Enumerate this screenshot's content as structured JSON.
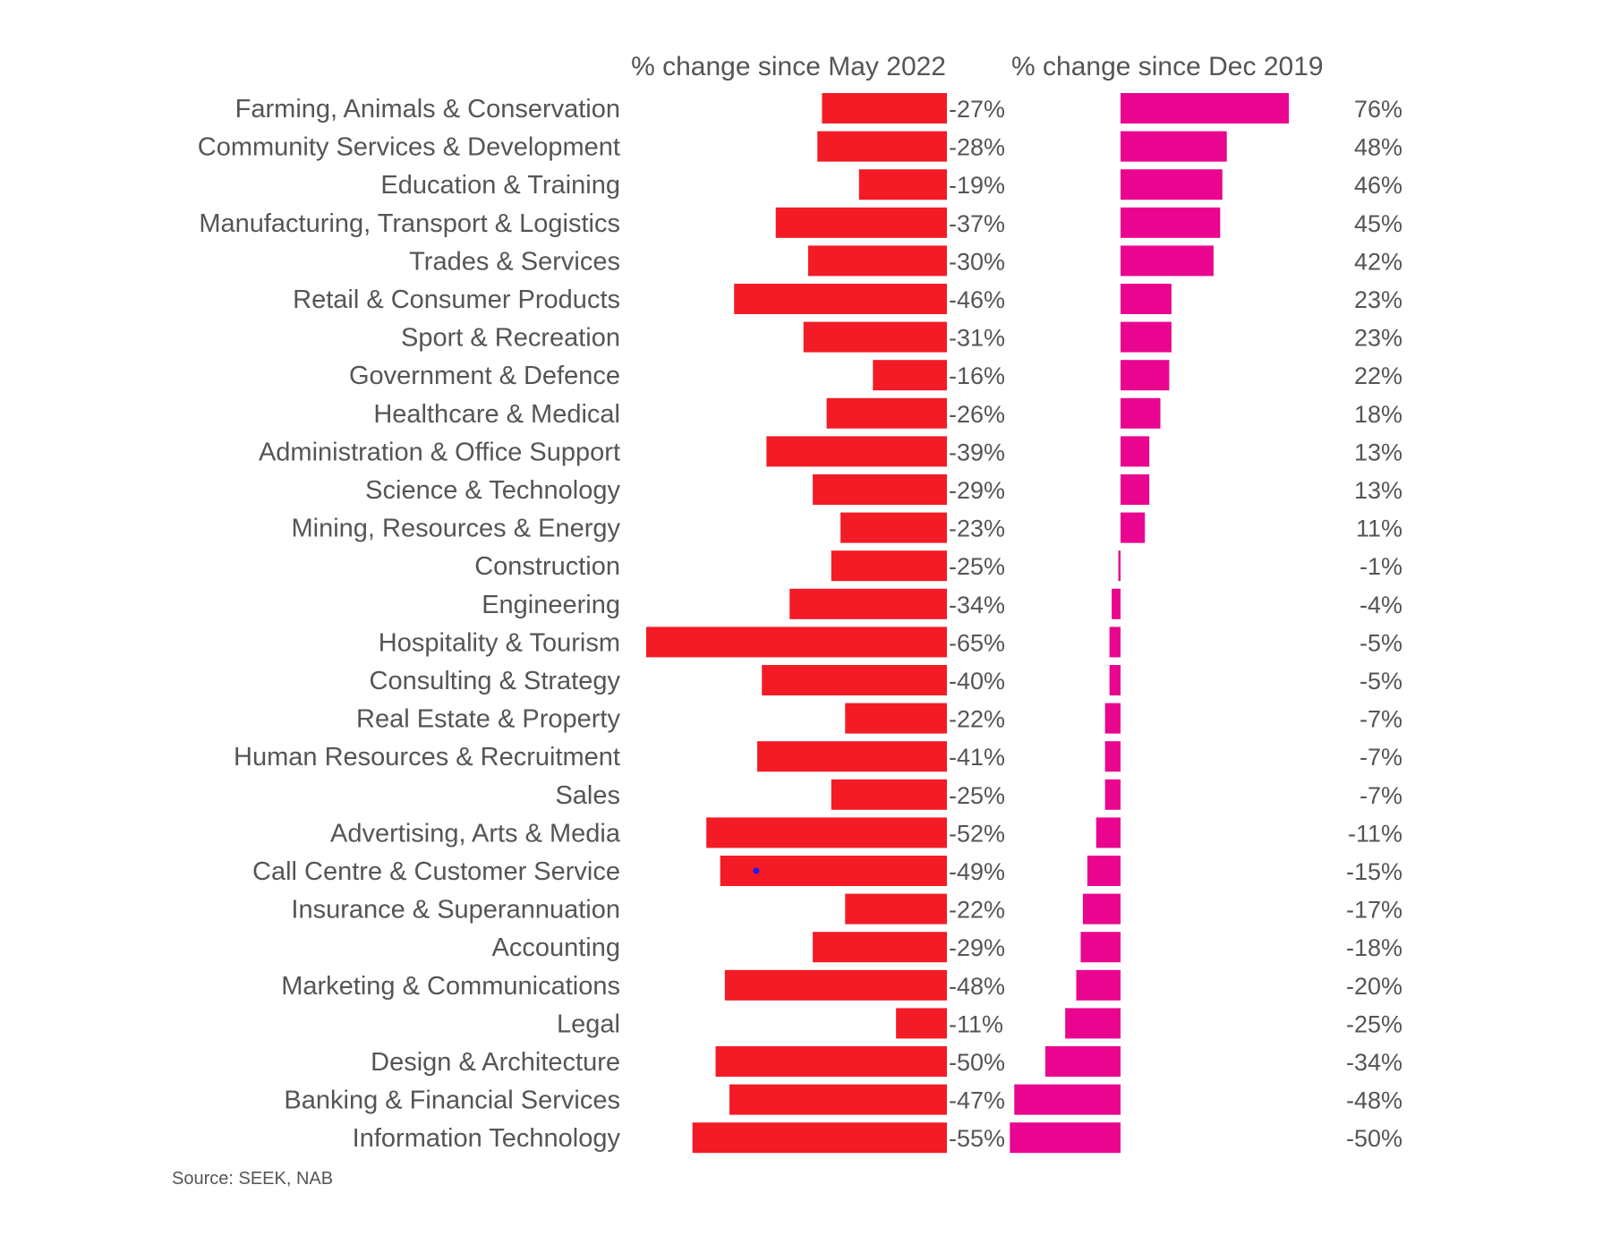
{
  "colors": {
    "may_series": "#f31b25",
    "dec_series": "#e9058f",
    "text": "#555555",
    "marker": "#1a1aff"
  },
  "source": "Source: SEEK, NAB",
  "chart_data": [
    {
      "type": "bar",
      "orientation": "horizontal",
      "title": "% change since May 2022",
      "categories": [
        "Farming, Animals & Conservation",
        "Community Services & Development",
        "Education & Training",
        "Manufacturing, Transport & Logistics",
        "Trades & Services",
        "Retail & Consumer Products",
        "Sport & Recreation",
        "Government & Defence",
        "Healthcare & Medical",
        "Administration & Office Support",
        "Science & Technology",
        "Mining, Resources & Energy",
        "Construction",
        "Engineering",
        "Hospitality & Tourism",
        "Consulting & Strategy",
        "Real Estate & Property",
        "Human Resources & Recruitment",
        "Sales",
        "Advertising, Arts & Media",
        "Call Centre & Customer Service",
        "Insurance & Superannuation",
        "Accounting",
        "Marketing & Communications",
        "Legal",
        "Design & Architecture",
        "Banking & Financial Services",
        "Information Technology"
      ],
      "values": [
        -27,
        -28,
        -19,
        -37,
        -30,
        -46,
        -31,
        -16,
        -26,
        -39,
        -29,
        -23,
        -25,
        -34,
        -65,
        -40,
        -22,
        -41,
        -25,
        -52,
        -49,
        -22,
        -29,
        -48,
        -11,
        -50,
        -47,
        -55
      ],
      "labels": [
        "-27%",
        "-28%",
        "-19%",
        "-37%",
        "-30%",
        "-46%",
        "-31%",
        "-16%",
        "-26%",
        "-39%",
        "-29%",
        "-23%",
        "-25%",
        "-34%",
        "-65%",
        "-40%",
        "-22%",
        "-41%",
        "-25%",
        "-52%",
        "-49%",
        "-22%",
        "-29%",
        "-48%",
        "-11%",
        "-50%",
        "-47%",
        "-55%"
      ],
      "xlim": [
        -65,
        0
      ],
      "grid": false,
      "legend": "none"
    },
    {
      "type": "bar",
      "orientation": "horizontal",
      "title": "% change since Dec 2019",
      "values": [
        76,
        48,
        46,
        45,
        42,
        23,
        23,
        22,
        18,
        13,
        13,
        11,
        -1,
        -4,
        -5,
        -5,
        -7,
        -7,
        -7,
        -11,
        -15,
        -17,
        -18,
        -20,
        -25,
        -34,
        -48,
        -50
      ],
      "labels": [
        "76%",
        "48%",
        "46%",
        "45%",
        "42%",
        "23%",
        "23%",
        "22%",
        "18%",
        "13%",
        "13%",
        "11%",
        "-1%",
        "-4%",
        "-5%",
        "-5%",
        "-7%",
        "-7%",
        "-7%",
        "-11%",
        "-15%",
        "-17%",
        "-18%",
        "-20%",
        "-25%",
        "-34%",
        "-48%",
        "-50%"
      ],
      "xlim": [
        -50,
        76
      ],
      "grid": false,
      "legend": "none"
    }
  ]
}
